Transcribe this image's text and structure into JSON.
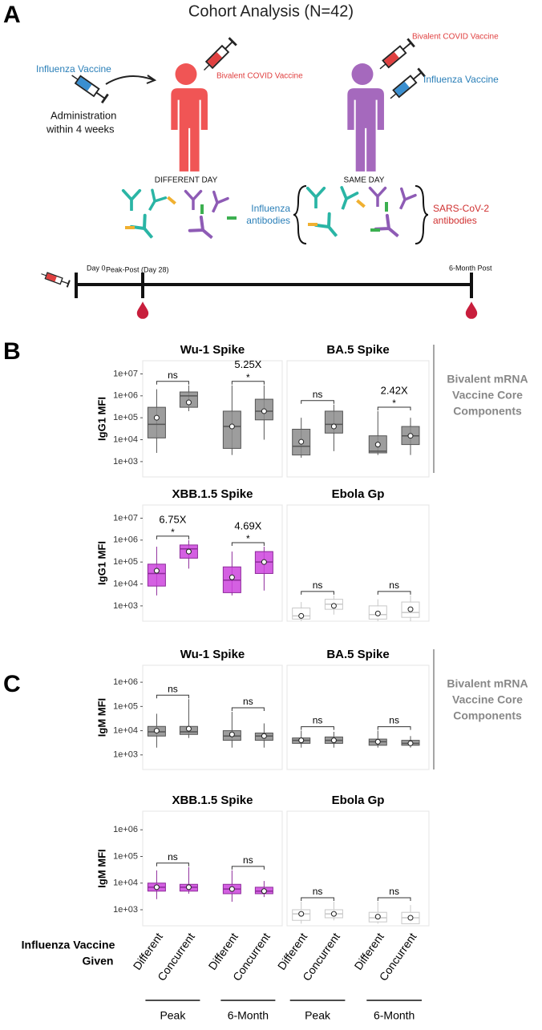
{
  "figure": {
    "panel_letters": [
      "A",
      "B",
      "C"
    ],
    "title": "Cohort Analysis (N=42)",
    "schema": {
      "left": {
        "vaccine_first": "Influenza Vaccine",
        "admin": [
          "Administration",
          "within  4 weeks"
        ],
        "vaccine_second": "Bivalent COVID Vaccine",
        "label": "DIFFERENT DAY"
      },
      "right": {
        "vaccine_first": "Bivalent COVID Vaccine",
        "vaccine_second": "Influenza Vaccine",
        "label": "SAME DAY"
      },
      "influenza_antibodies": [
        "Influenza",
        "antibodies"
      ],
      "sars_antibodies": [
        "SARS-CoV-2",
        "antibodies"
      ]
    },
    "timeline": {
      "start": "Day 0",
      "peak": "Peak-Post (Day 28)",
      "end": "6-Month Post"
    },
    "sections": [
      {
        "y_label": "IgG1 MFI",
        "side_label": [
          "Bivalent mRNA",
          "Vaccine Core",
          "Components"
        ],
        "scale": "log",
        "ylim": [
          200,
          40000000
        ],
        "yticks": [
          {
            "value": 1000,
            "label": "1e+03"
          },
          {
            "value": 10000,
            "label": "1e+04"
          },
          {
            "value": 100000,
            "label": "1e+05"
          },
          {
            "value": 1000000,
            "label": "1e+06"
          },
          {
            "value": 10000000,
            "label": "1e+07"
          }
        ],
        "plots": [
          {
            "title": "Wu-1 Spike",
            "color": "#8c8c8c",
            "edge": "#555555",
            "boxes": [
              {
                "low": 2500,
                "q1": 12000,
                "median": 50000,
                "q3": 300000,
                "high": 2000000,
                "mean": 100000
              },
              {
                "low": 200000,
                "q1": 300000,
                "median": 1000000,
                "q3": 1500000,
                "high": 3000000,
                "mean": 500000
              },
              {
                "low": 2000,
                "q1": 4000,
                "median": 40000,
                "q3": 200000,
                "high": 3000000,
                "mean": 40000
              },
              {
                "low": 10000,
                "q1": 80000,
                "median": 200000,
                "q3": 700000,
                "high": 3000000,
                "mean": 200000
              }
            ],
            "comparisons": [
              {
                "label": "ns"
              },
              {
                "fold": "5.25X",
                "label": "*"
              }
            ]
          },
          {
            "title": "BA.5 Spike",
            "color": "#8c8c8c",
            "edge": "#555555",
            "boxes": [
              {
                "low": 1500,
                "q1": 2000,
                "median": 5000,
                "q3": 30000,
                "high": 100000,
                "mean": 8000
              },
              {
                "low": 3000,
                "q1": 20000,
                "median": 50000,
                "q3": 200000,
                "high": 400000,
                "mean": 40000
              },
              {
                "low": 2000,
                "q1": 2500,
                "median": 3000,
                "q3": 15000,
                "high": 200000,
                "mean": 6000
              },
              {
                "low": 2000,
                "q1": 6000,
                "median": 15000,
                "q3": 40000,
                "high": 100000,
                "mean": 15000
              }
            ],
            "comparisons": [
              {
                "label": "ns"
              },
              {
                "fold": "2.42X",
                "label": "*"
              }
            ]
          },
          {
            "title": "XBB.1.5 Spike",
            "color": "#cc44dd",
            "edge": "#8e2b9b",
            "boxes": [
              {
                "low": 3000,
                "q1": 8000,
                "median": 30000,
                "q3": 80000,
                "high": 500000,
                "mean": 40000
              },
              {
                "low": 50000,
                "q1": 150000,
                "median": 400000,
                "q3": 600000,
                "high": 1000000,
                "mean": 300000
              },
              {
                "low": 3000,
                "q1": 4000,
                "median": 15000,
                "q3": 60000,
                "high": 300000,
                "mean": 20000
              },
              {
                "low": 5000,
                "q1": 30000,
                "median": 100000,
                "q3": 300000,
                "high": 500000,
                "mean": 100000
              }
            ],
            "comparisons": [
              {
                "fold": "6.75X",
                "label": "*"
              },
              {
                "fold": "4.69X",
                "label": "*"
              }
            ]
          },
          {
            "title": "Ebola Gp",
            "color": "#ffffff",
            "edge": "#c8c8c8",
            "boxes": [
              {
                "low": 200,
                "q1": 250,
                "median": 350,
                "q3": 800,
                "high": 1500,
                "mean": 350
              },
              {
                "low": 400,
                "q1": 700,
                "median": 1200,
                "q3": 2000,
                "high": 3000,
                "mean": 1000
              },
              {
                "low": 200,
                "q1": 250,
                "median": 400,
                "q3": 1000,
                "high": 2000,
                "mean": 450
              },
              {
                "low": 200,
                "q1": 300,
                "median": 500,
                "q3": 1500,
                "high": 3000,
                "mean": 700
              }
            ],
            "comparisons": [
              {
                "label": "ns"
              },
              {
                "label": "ns"
              }
            ]
          }
        ]
      },
      {
        "y_label": "IgM  MFI",
        "side_label": [
          "Bivalent mRNA",
          "Vaccine Core",
          "Components"
        ],
        "scale": "log",
        "ylim": [
          250,
          5000000
        ],
        "yticks": [
          {
            "value": 1000,
            "label": "1e+03"
          },
          {
            "value": 10000,
            "label": "1e+04"
          },
          {
            "value": 100000,
            "label": "1e+05"
          },
          {
            "value": 1000000,
            "label": "1e+06"
          }
        ],
        "plots": [
          {
            "title": "Wu-1 Spike",
            "color": "#8c8c8c",
            "edge": "#555555",
            "boxes": [
              {
                "low": 2000,
                "q1": 6000,
                "median": 9000,
                "q3": 15000,
                "high": 50000,
                "mean": 10000
              },
              {
                "low": 5000,
                "q1": 7000,
                "median": 9000,
                "q3": 15000,
                "high": 200000,
                "mean": 12000
              },
              {
                "low": 2000,
                "q1": 4000,
                "median": 6000,
                "q3": 10000,
                "high": 60000,
                "mean": 7000
              },
              {
                "low": 2000,
                "q1": 4000,
                "median": 6000,
                "q3": 8000,
                "high": 20000,
                "mean": 6000
              }
            ],
            "comparisons": [
              {
                "label": "ns"
              },
              {
                "label": "ns"
              }
            ]
          },
          {
            "title": "BA.5 Spike",
            "color": "#8c8c8c",
            "edge": "#555555",
            "boxes": [
              {
                "low": 2000,
                "q1": 3000,
                "median": 4000,
                "q3": 5000,
                "high": 10000,
                "mean": 4000
              },
              {
                "low": 2000,
                "q1": 3000,
                "median": 4000,
                "q3": 5500,
                "high": 9000,
                "mean": 4000
              },
              {
                "low": 2000,
                "q1": 2500,
                "median": 3500,
                "q3": 4500,
                "high": 10000,
                "mean": 3500
              },
              {
                "low": 2000,
                "q1": 2500,
                "median": 3000,
                "q3": 4000,
                "high": 6000,
                "mean": 3000
              }
            ],
            "comparisons": [
              {
                "label": "ns"
              },
              {
                "label": "ns"
              }
            ]
          },
          {
            "title": "XBB.1.5 Spike",
            "color": "#cc44dd",
            "edge": "#8e2b9b",
            "boxes": [
              {
                "low": 2500,
                "q1": 5000,
                "median": 7000,
                "q3": 10000,
                "high": 30000,
                "mean": 7000
              },
              {
                "low": 4000,
                "q1": 5000,
                "median": 7000,
                "q3": 9000,
                "high": 40000,
                "mean": 7000
              },
              {
                "low": 2000,
                "q1": 4000,
                "median": 6000,
                "q3": 9000,
                "high": 30000,
                "mean": 6000
              },
              {
                "low": 3000,
                "q1": 4000,
                "median": 5000,
                "q3": 7000,
                "high": 12000,
                "mean": 5000
              }
            ],
            "comparisons": [
              {
                "label": "ns"
              },
              {
                "label": "ns"
              }
            ]
          },
          {
            "title": "Ebola Gp",
            "color": "#ffffff",
            "edge": "#c8c8c8",
            "boxes": [
              {
                "low": 300,
                "q1": 400,
                "median": 700,
                "q3": 1000,
                "high": 2000,
                "mean": 700
              },
              {
                "low": 400,
                "q1": 500,
                "median": 700,
                "q3": 1000,
                "high": 2000,
                "mean": 700
              },
              {
                "low": 300,
                "q1": 350,
                "median": 500,
                "q3": 800,
                "high": 2000,
                "mean": 550
              },
              {
                "low": 300,
                "q1": 300,
                "median": 500,
                "q3": 800,
                "high": 1500,
                "mean": 500
              }
            ],
            "comparisons": [
              {
                "label": "ns"
              },
              {
                "label": "ns"
              }
            ]
          }
        ]
      }
    ],
    "x_axis": {
      "title": [
        "Influenza Vaccine",
        "Given"
      ],
      "categories": [
        "Different",
        "Concurrent",
        "Different",
        "Concurrent",
        "Different",
        "Concurrent",
        "Different",
        "Concurrent"
      ],
      "groups": [
        "Peak",
        "6-Month",
        "Peak",
        "6-Month"
      ]
    }
  }
}
